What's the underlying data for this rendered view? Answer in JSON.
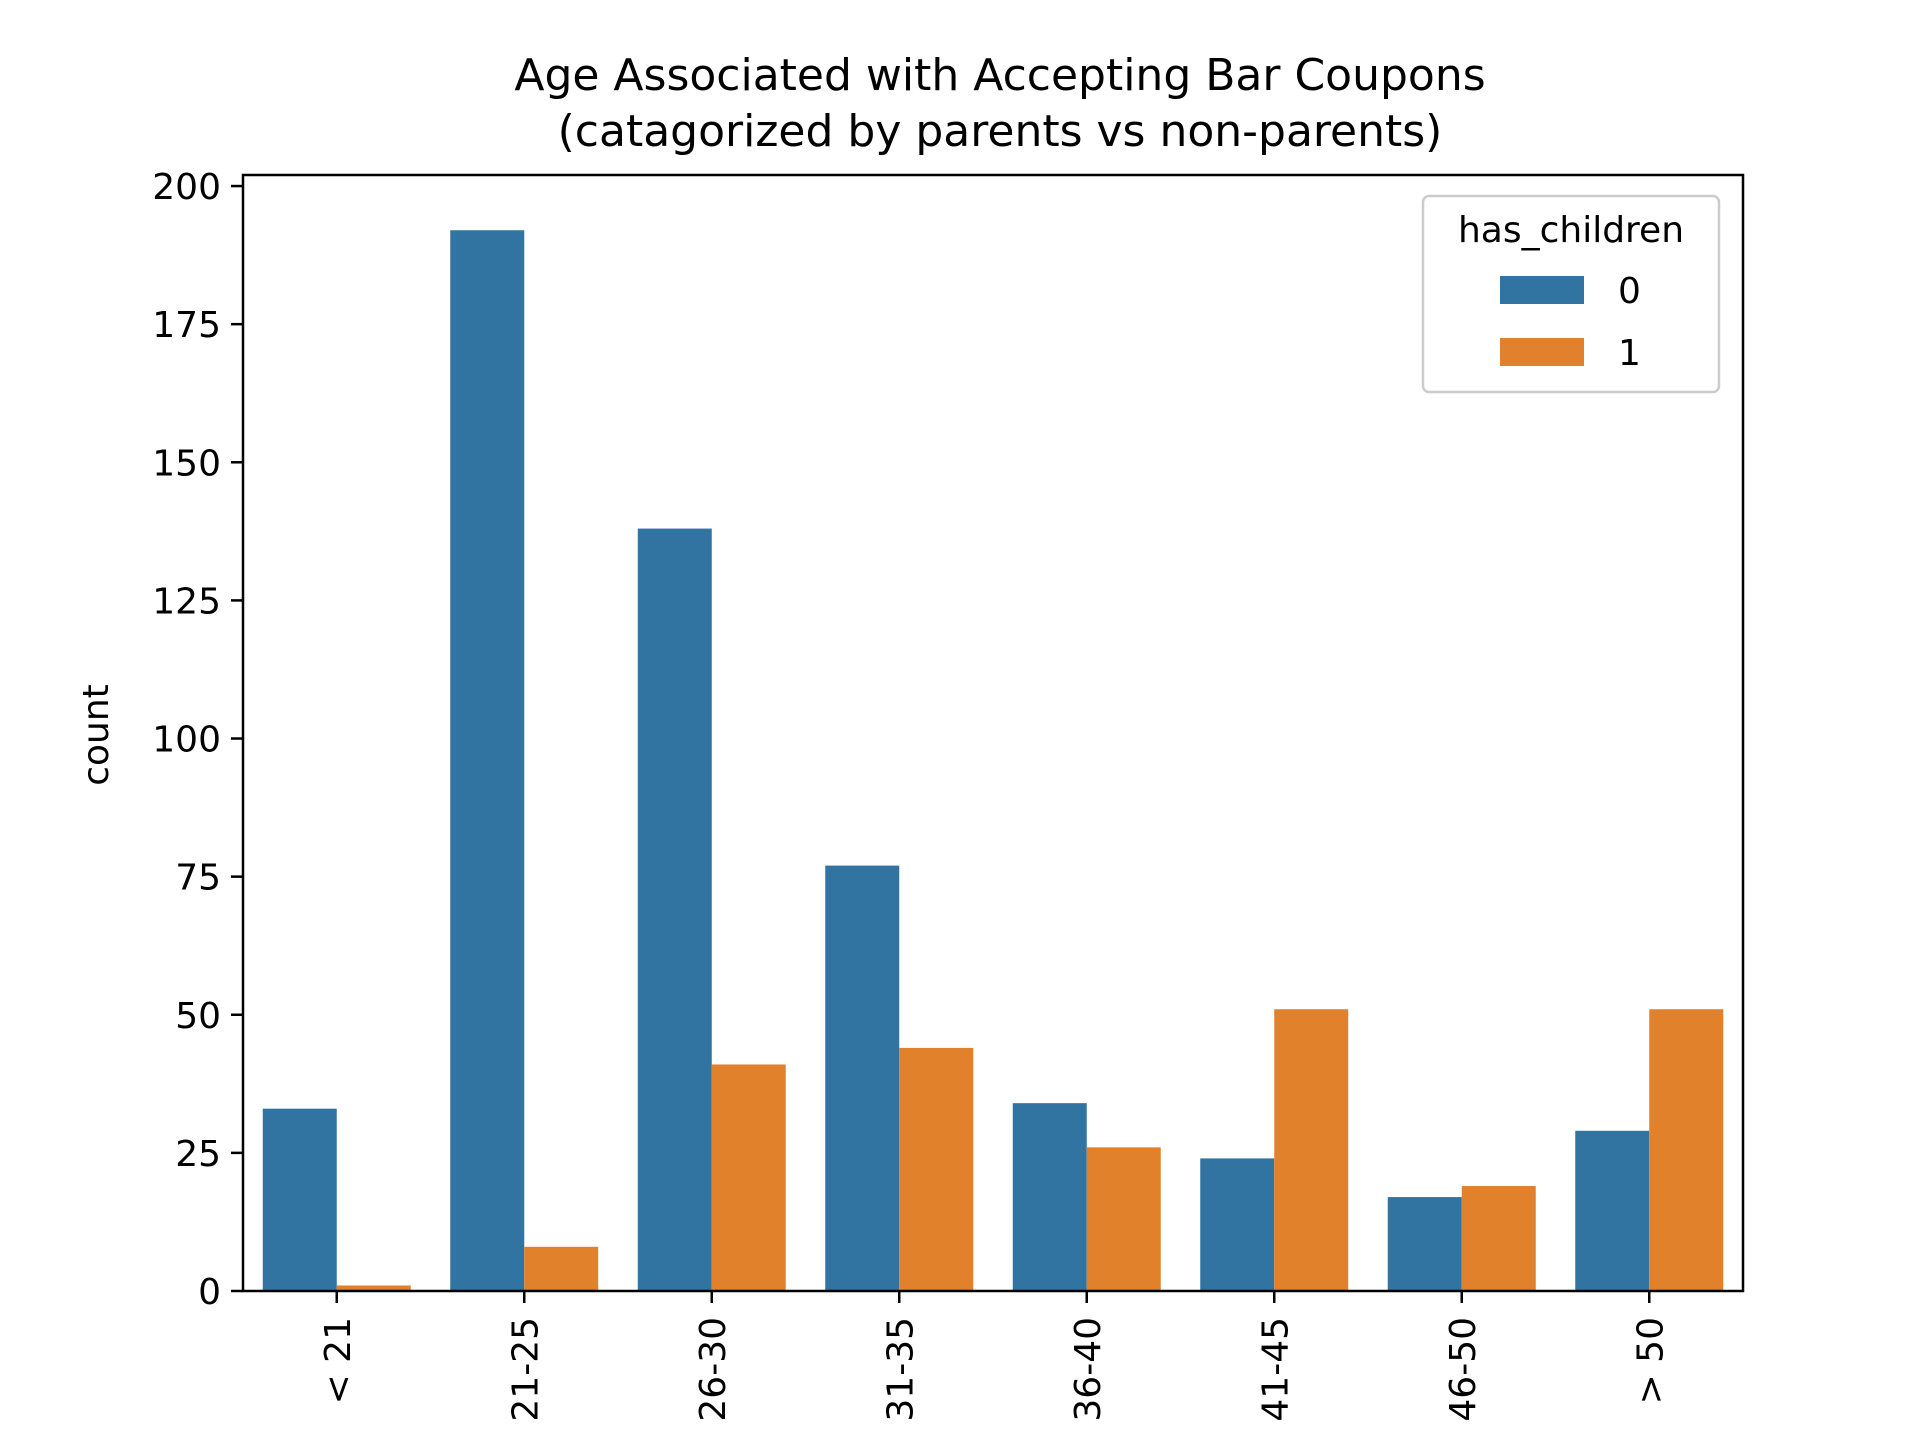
{
  "chart_data": {
    "type": "bar",
    "title_line1": "Age Associated with Accepting Bar Coupons",
    "title_line2": "(catagorized by parents vs non-parents)",
    "xlabel": "",
    "ylabel": "count",
    "categories": [
      "< 21",
      "21-25",
      "26-30",
      "31-35",
      "36-40",
      "41-45",
      "46-50",
      "> 50"
    ],
    "ylim": [
      0,
      202
    ],
    "yticks": [
      0,
      25,
      50,
      75,
      100,
      125,
      150,
      175,
      200
    ],
    "series": [
      {
        "name": "0",
        "color": "#3274a1",
        "values": [
          33,
          192,
          138,
          77,
          34,
          24,
          17,
          29
        ]
      },
      {
        "name": "1",
        "color": "#e1812c",
        "values": [
          1,
          8,
          41,
          44,
          26,
          51,
          19,
          51
        ]
      }
    ],
    "legend": {
      "title": "has_children",
      "position": "top-right"
    },
    "grid": false
  }
}
